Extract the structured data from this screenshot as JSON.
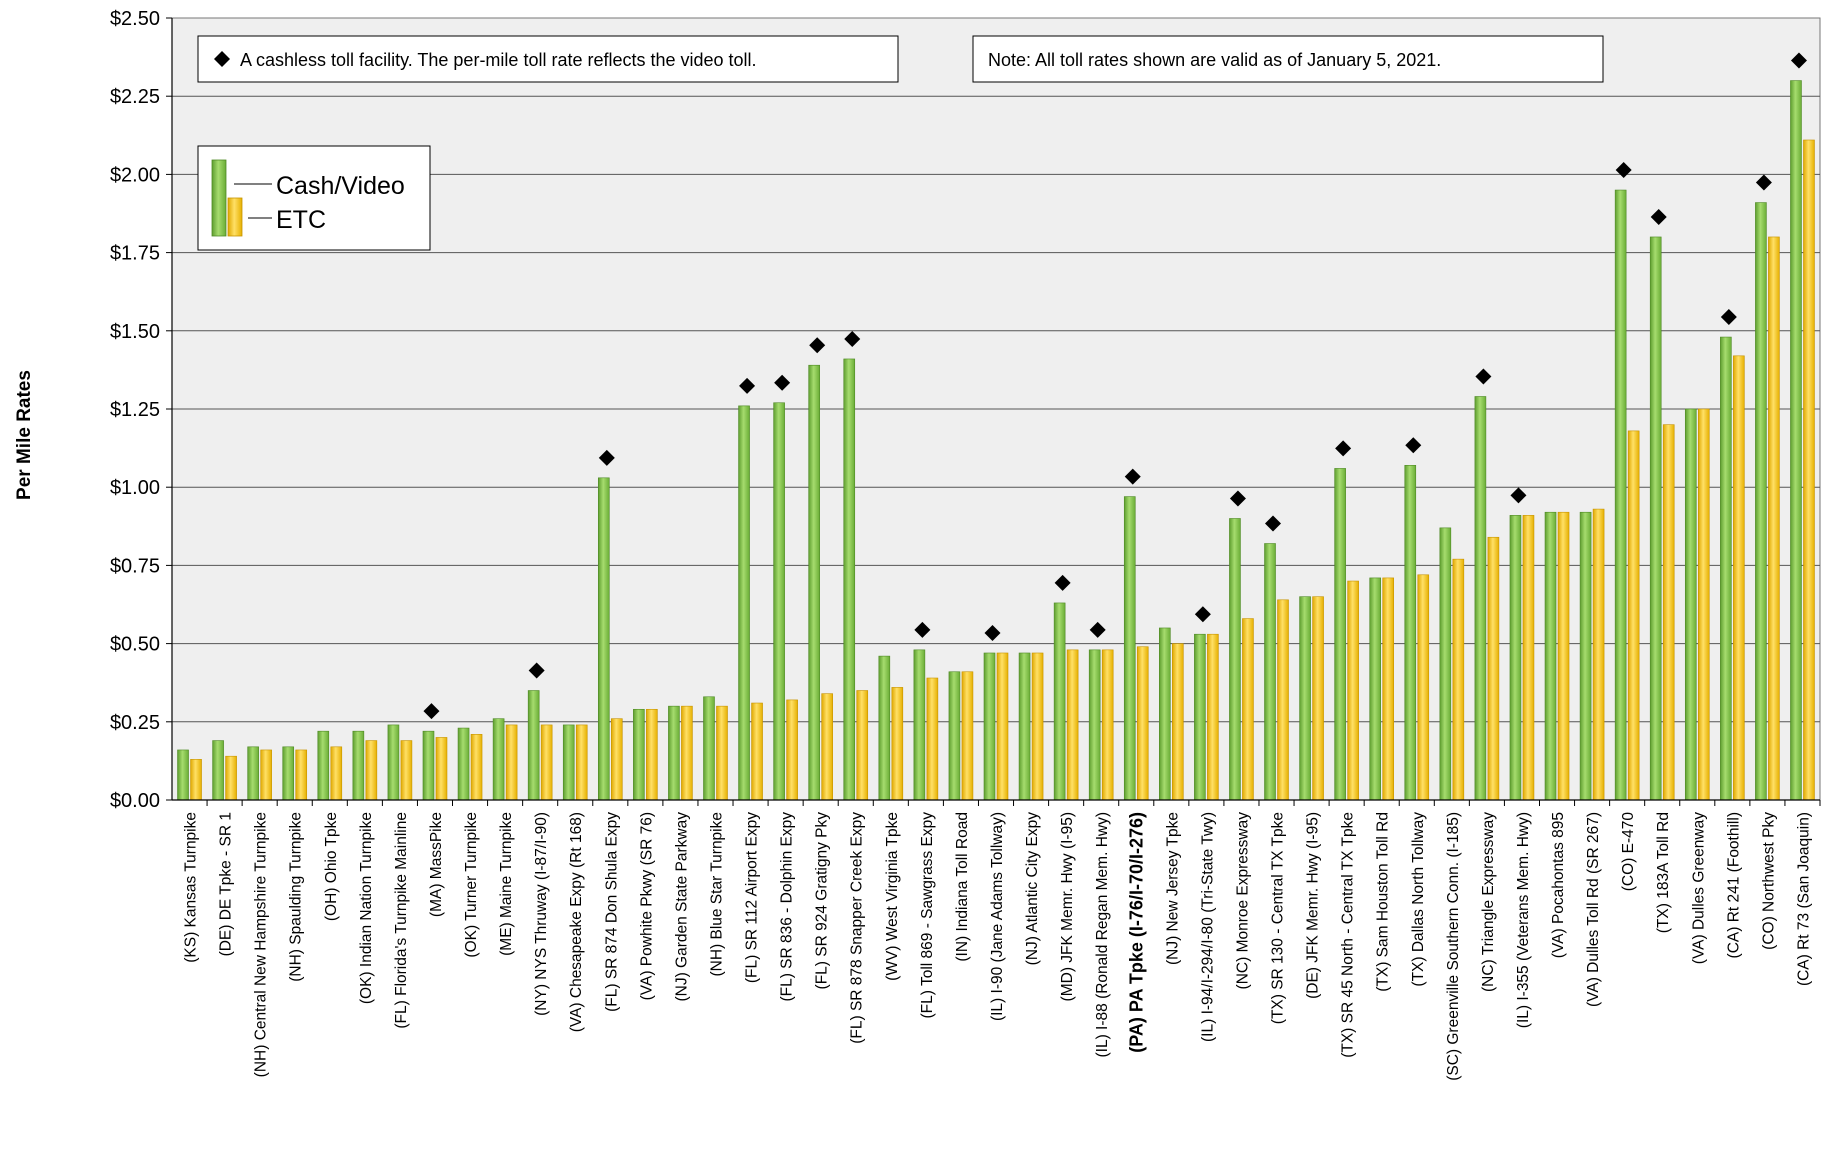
{
  "chart_data": {
    "type": "bar",
    "ylabel": "Per Mile Rates",
    "xlabel": "",
    "ylim": [
      0,
      2.5
    ],
    "y_ticks": [
      "$0.00",
      "$0.25",
      "$0.50",
      "$0.75",
      "$1.00",
      "$1.25",
      "$1.50",
      "$1.75",
      "$2.00",
      "$2.25",
      "$2.50"
    ],
    "y_tick_values": [
      0,
      0.25,
      0.5,
      0.75,
      1.0,
      1.25,
      1.5,
      1.75,
      2.0,
      2.25,
      2.5
    ],
    "grid": true,
    "plot_background": "#efefef",
    "legend": {
      "placement": "top-left",
      "entries": [
        "Cash/Video",
        "ETC"
      ]
    },
    "annotations": {
      "cashless_marker_note": "A cashless toll facility. The per-mile toll rate reflects the video toll.",
      "validity_note": "Note: All toll rates shown are valid as of January 5, 2021."
    },
    "highlighted_category": "(PA) PA Tpke (I-76/I-70/I-276)",
    "categories": [
      "(KS) Kansas Turnpike",
      "(DE) DE Tpke - SR 1",
      "(NH) Central New Hampshire Turnpike",
      "(NH) Spaulding Turnpike",
      "(OH) Ohio Tpke",
      "(OK) Indian Nation Turnpike",
      "(FL) Florida's Turnpike Mainline",
      "(MA) MassPike",
      "(OK) Turner Turnpike",
      "(ME) Maine Turnpike",
      "(NY) NYS Thruway (I-87/I-90)",
      "(VA) Chesapeake Expy (Rt 168)",
      "(FL) SR 874 Don Shula Expy",
      "(VA) Powhite Pkwy (SR 76)",
      "(NJ) Garden State Parkway",
      "(NH) Blue Star Turnpike",
      "(FL) SR 112 Airport Expy",
      "(FL) SR 836 - Dolphin Expy",
      "(FL) SR 924 Gratigny Pky",
      "(FL) SR 878 Snapper Creek Expy",
      "(WV) West Virginia Tpke",
      "(FL) Toll 869 - Sawgrass Expy",
      "(IN) Indiana Toll Road",
      "(IL) I-90 (Jane Adams Tollway)",
      "(NJ) Atlantic City Expy",
      "(MD) JFK Memr. Hwy (I-95)",
      "(IL) I-88 (Ronald Regan Mem. Hwy)",
      "(PA) PA Tpke (I-76/I-70/I-276)",
      "(NJ) New Jersey Tpke",
      "(IL) I-94/I-294/I-80 (Tri-State Twy)",
      "(NC) Monroe Expressway",
      "(TX) SR 130 - Central TX Tpke",
      "(DE) JFK Memr. Hwy (I-95)",
      "(TX) SR 45 North - Central TX Tpke",
      "(TX) Sam Houston Toll Rd",
      "(TX) Dallas North Tollway",
      "(SC) Greenville Southern Conn. (I-185)",
      "(NC) Triangle Expressway",
      "(IL) I-355 (Veterans Mem. Hwy)",
      "(VA) Pocahontas 895",
      "(VA) Dulles Toll Rd (SR 267)",
      "(CO) E-470",
      "(TX) 183A Toll Rd",
      "(VA) Dulles Greenway",
      "(CA) Rt 241 (Foothill)",
      "(CO) Northwest Pky",
      "(CA) Rt 73 (San Joaquin)"
    ],
    "series": [
      {
        "name": "Cash/Video",
        "color": "#7ac142",
        "values": [
          0.16,
          0.19,
          0.17,
          0.17,
          0.22,
          0.22,
          0.24,
          0.22,
          0.23,
          0.26,
          0.35,
          0.24,
          1.03,
          0.29,
          0.3,
          0.33,
          1.26,
          1.27,
          1.39,
          1.41,
          0.46,
          0.48,
          0.41,
          0.47,
          0.47,
          0.63,
          0.48,
          0.97,
          0.55,
          0.53,
          0.9,
          0.82,
          0.65,
          1.06,
          0.71,
          1.07,
          0.87,
          1.29,
          0.91,
          0.92,
          0.92,
          1.95,
          1.8,
          1.25,
          1.48,
          1.91,
          2.3
        ]
      },
      {
        "name": "ETC",
        "color": "#f5c100",
        "values": [
          0.13,
          0.14,
          0.16,
          0.16,
          0.17,
          0.19,
          0.19,
          0.2,
          0.21,
          0.24,
          0.24,
          0.24,
          0.26,
          0.29,
          0.3,
          0.3,
          0.31,
          0.32,
          0.34,
          0.35,
          0.36,
          0.39,
          0.41,
          0.47,
          0.47,
          0.48,
          0.48,
          0.49,
          0.5,
          0.53,
          0.58,
          0.64,
          0.65,
          0.7,
          0.71,
          0.72,
          0.77,
          0.84,
          0.91,
          0.92,
          0.93,
          1.18,
          1.2,
          1.25,
          1.42,
          1.8,
          2.11
        ]
      }
    ],
    "cashless_flags": [
      false,
      false,
      false,
      false,
      false,
      false,
      false,
      true,
      false,
      false,
      true,
      false,
      true,
      false,
      false,
      false,
      true,
      true,
      true,
      true,
      false,
      true,
      false,
      true,
      false,
      true,
      true,
      true,
      false,
      true,
      true,
      true,
      false,
      true,
      false,
      true,
      false,
      true,
      true,
      false,
      false,
      true,
      true,
      false,
      true,
      true,
      true
    ]
  }
}
